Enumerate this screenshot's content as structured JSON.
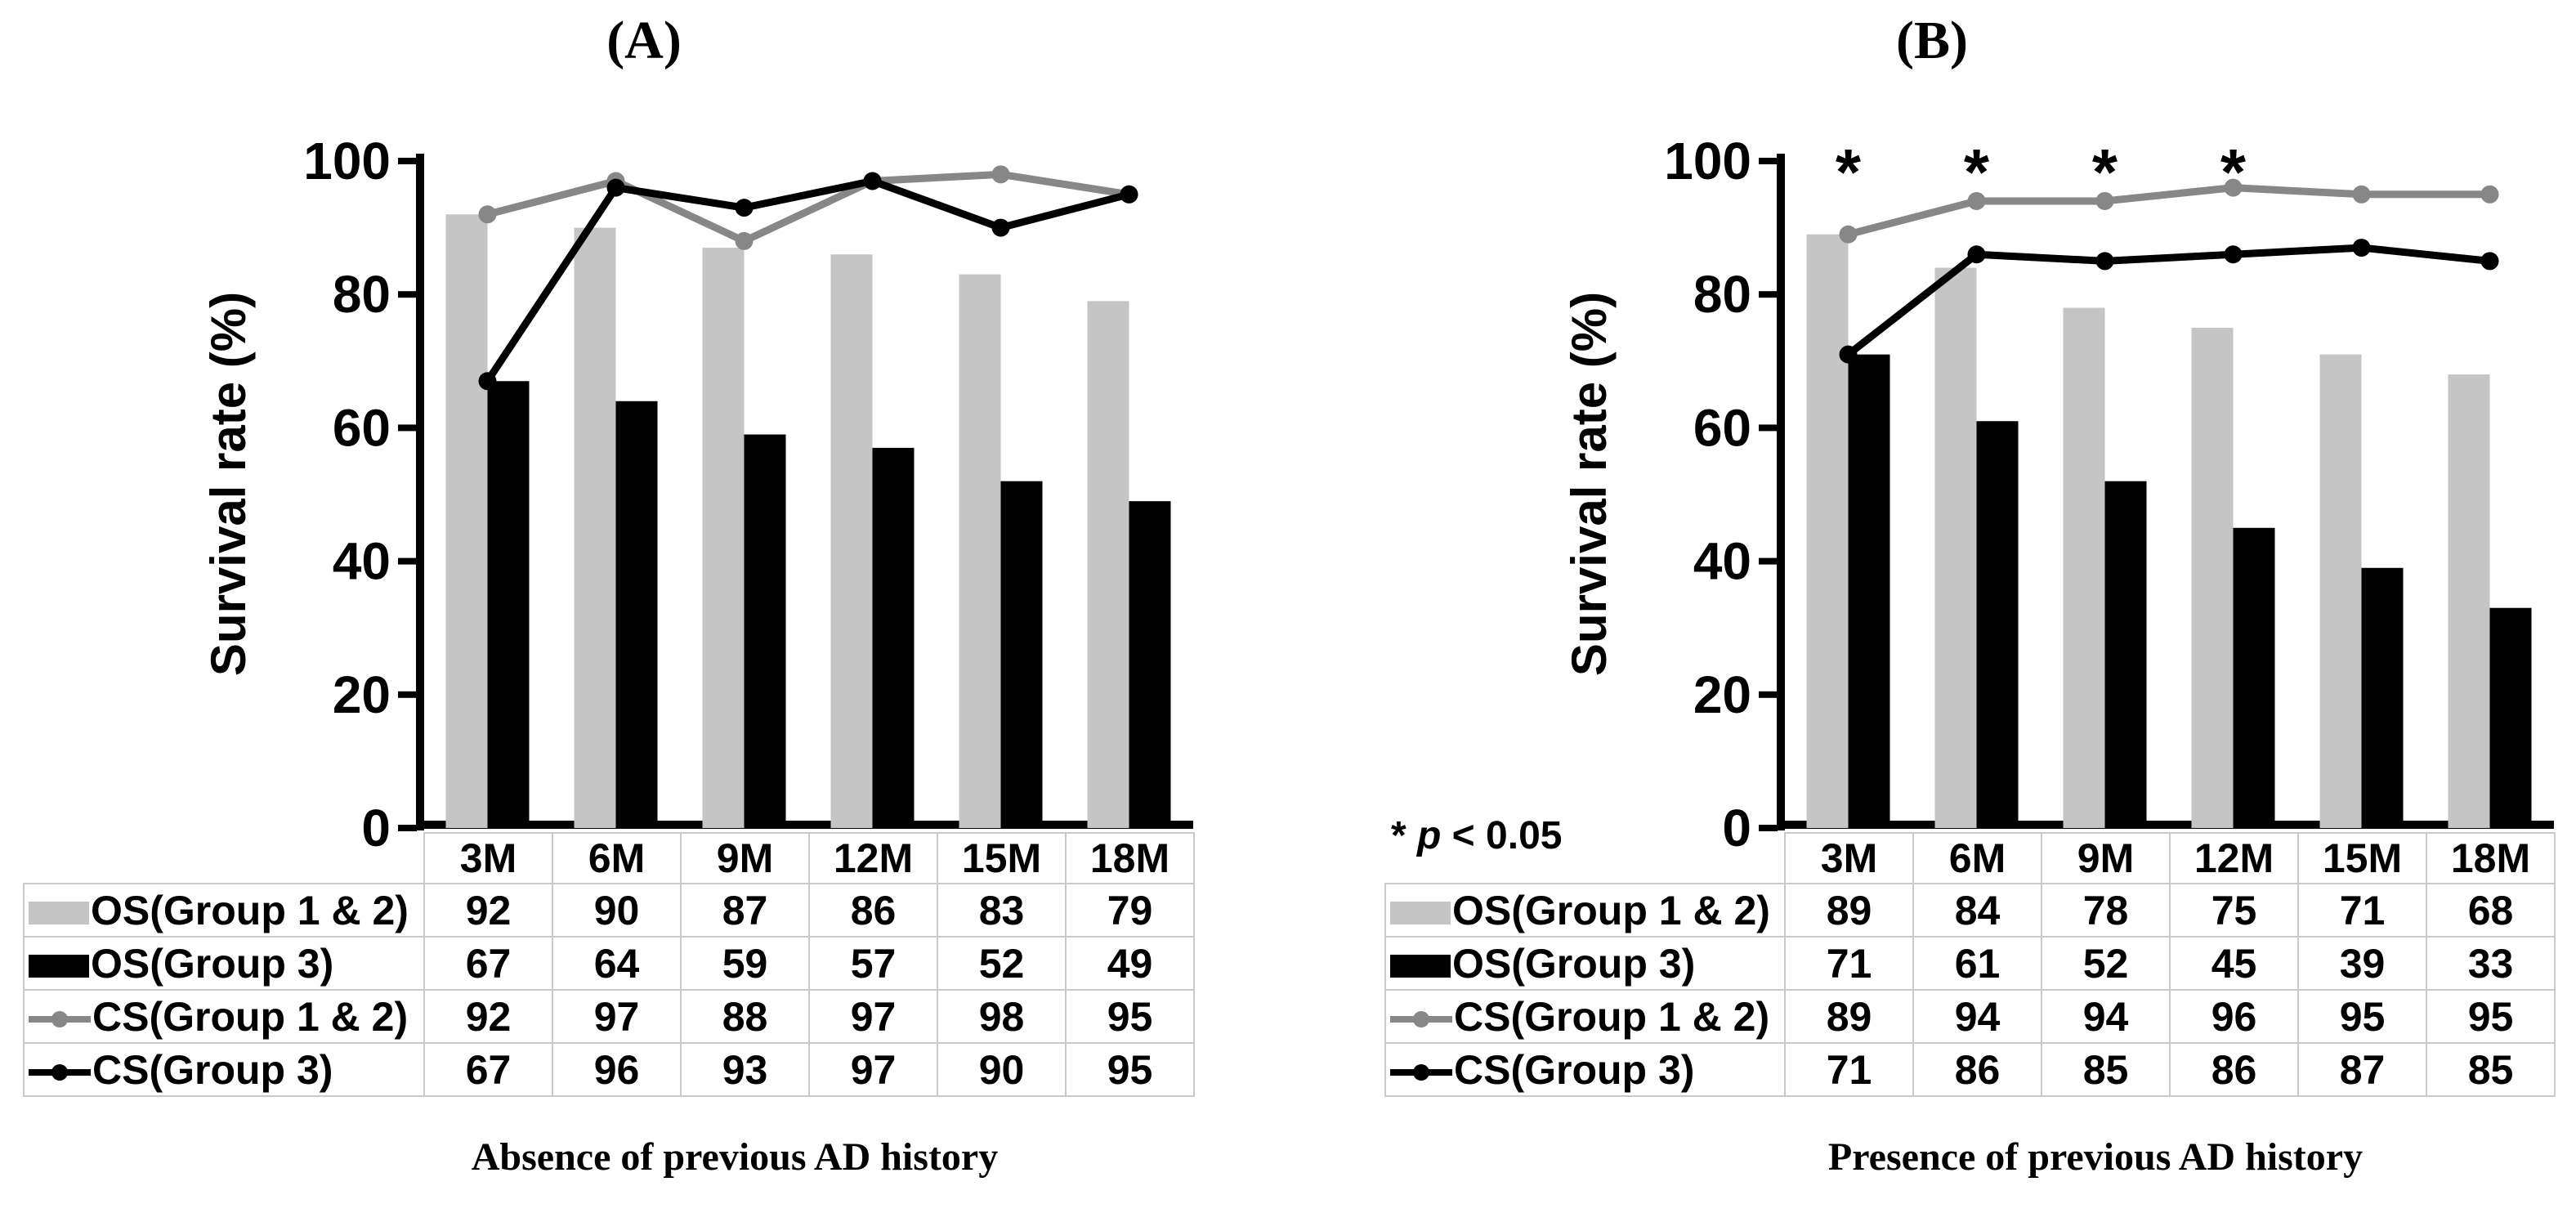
{
  "chart_data": [
    {
      "type": "bar+line",
      "title": "(A)",
      "ylabel": "Survival rate (%)",
      "ylim": [
        0,
        100
      ],
      "yticks": [
        0,
        20,
        40,
        60,
        80,
        100
      ],
      "categories": [
        "3M",
        "6M",
        "9M",
        "12M",
        "15M",
        "18M"
      ],
      "series": [
        {
          "name": "OS(Group 1 & 2)",
          "type": "bar",
          "color": "#c5c5c5",
          "values": [
            92,
            90,
            87,
            86,
            83,
            79
          ]
        },
        {
          "name": "OS(Group 3)",
          "type": "bar",
          "color": "#000000",
          "values": [
            67,
            64,
            59,
            57,
            52,
            49
          ]
        },
        {
          "name": "CS(Group 1 & 2)",
          "type": "line",
          "color": "#878787",
          "values": [
            92,
            97,
            88,
            97,
            98,
            95
          ]
        },
        {
          "name": "CS(Group 3)",
          "type": "line",
          "color": "#000000",
          "values": [
            67,
            96,
            93,
            97,
            90,
            95
          ]
        }
      ],
      "asterisk_categories": [],
      "caption": "Absence of previous AD history",
      "legend_position": "table-left-column",
      "grid": false
    },
    {
      "type": "bar+line",
      "title": "(B)",
      "ylabel": "Survival rate (%)",
      "ylim": [
        0,
        100
      ],
      "yticks": [
        0,
        20,
        40,
        60,
        80,
        100
      ],
      "categories": [
        "3M",
        "6M",
        "9M",
        "12M",
        "15M",
        "18M"
      ],
      "series": [
        {
          "name": "OS(Group 1 & 2)",
          "type": "bar",
          "color": "#c5c5c5",
          "values": [
            89,
            84,
            78,
            75,
            71,
            68
          ]
        },
        {
          "name": "OS(Group 3)",
          "type": "bar",
          "color": "#000000",
          "values": [
            71,
            61,
            52,
            45,
            39,
            33
          ]
        },
        {
          "name": "CS(Group 1 & 2)",
          "type": "line",
          "color": "#878787",
          "values": [
            89,
            94,
            94,
            96,
            95,
            95
          ]
        },
        {
          "name": "CS(Group 3)",
          "type": "line",
          "color": "#000000",
          "values": [
            71,
            86,
            85,
            86,
            87,
            85
          ]
        }
      ],
      "asterisk_categories": [
        "3M",
        "6M",
        "9M",
        "12M"
      ],
      "asterisk_symbol": "*",
      "note": {
        "star": "* ",
        "var": "p",
        "rest": " < 0.05"
      },
      "caption": "Presence of previous AD history",
      "legend_position": "table-left-column",
      "grid": false
    }
  ]
}
